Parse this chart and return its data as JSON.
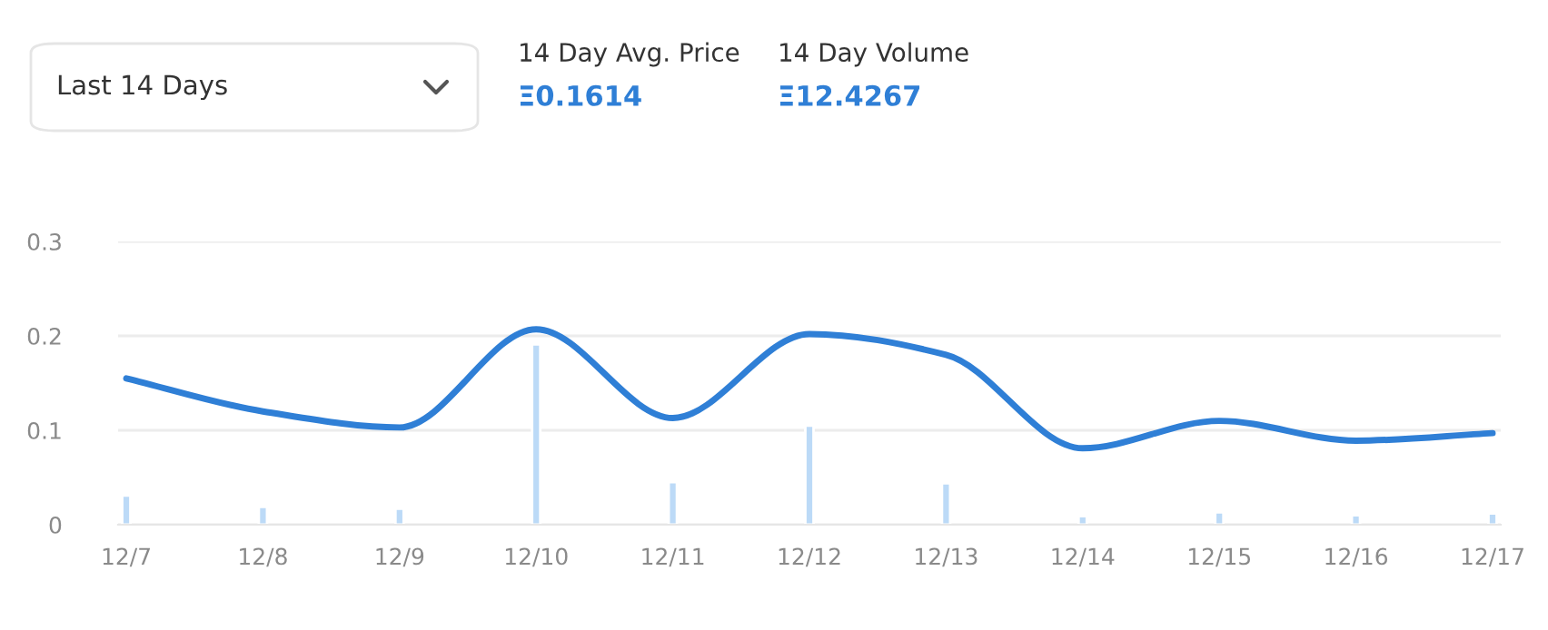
{
  "chart_data": {
    "type": "line",
    "categories": [
      "12/7",
      "12/8",
      "12/9",
      "12/10",
      "12/11",
      "12/12",
      "12/13",
      "12/14",
      "12/15",
      "12/16",
      "12/17"
    ],
    "series": [
      {
        "color": "#2f7fd6",
        "values": [
          0.155,
          0.12,
          0.103,
          0.207,
          0.113,
          0.202,
          0.18,
          0.081,
          0.11,
          0.089,
          0.097
        ]
      },
      {
        "type": "bar",
        "color": "#bcdaf7",
        "values": [
          0.031,
          0.019,
          0.017,
          0.191,
          0.045,
          0.105,
          0.044,
          0.009,
          0.013,
          0.01,
          0.012
        ]
      }
    ],
    "ylim": [
      0,
      0.3
    ],
    "yticks": [
      0,
      0.1,
      0.2,
      0.3
    ],
    "grid": "y",
    "legend": false,
    "marker": "none",
    "line_style": "solid",
    "annotations": [
      "Last 14 Days",
      "14 Day Avg. Price",
      "Ξ0.1614",
      "14 Day Volume",
      "Ξ12.4267"
    ]
  }
}
